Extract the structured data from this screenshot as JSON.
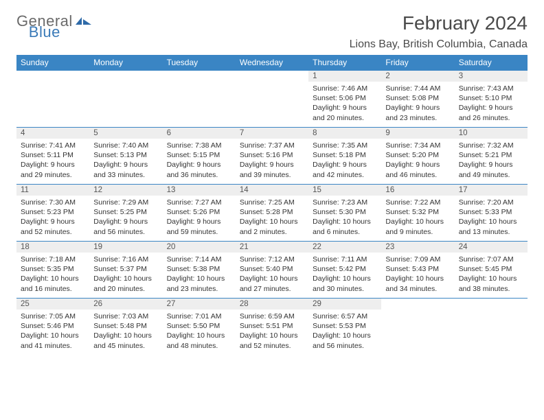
{
  "logo": {
    "part1": "General",
    "part2": "Blue"
  },
  "header": {
    "month_title": "February 2024",
    "location": "Lions Bay, British Columbia, Canada"
  },
  "colors": {
    "header_bg": "#3a85c4",
    "header_text": "#ffffff",
    "daynum_bg": "#eeeeee",
    "row_border": "#3a85c4",
    "logo_gray": "#6a6a6a",
    "logo_blue": "#3a7ab8"
  },
  "weekdays": [
    "Sunday",
    "Monday",
    "Tuesday",
    "Wednesday",
    "Thursday",
    "Friday",
    "Saturday"
  ],
  "weeks": [
    [
      null,
      null,
      null,
      null,
      {
        "n": "1",
        "sunrise": "Sunrise: 7:46 AM",
        "sunset": "Sunset: 5:06 PM",
        "day1": "Daylight: 9 hours",
        "day2": "and 20 minutes."
      },
      {
        "n": "2",
        "sunrise": "Sunrise: 7:44 AM",
        "sunset": "Sunset: 5:08 PM",
        "day1": "Daylight: 9 hours",
        "day2": "and 23 minutes."
      },
      {
        "n": "3",
        "sunrise": "Sunrise: 7:43 AM",
        "sunset": "Sunset: 5:10 PM",
        "day1": "Daylight: 9 hours",
        "day2": "and 26 minutes."
      }
    ],
    [
      {
        "n": "4",
        "sunrise": "Sunrise: 7:41 AM",
        "sunset": "Sunset: 5:11 PM",
        "day1": "Daylight: 9 hours",
        "day2": "and 29 minutes."
      },
      {
        "n": "5",
        "sunrise": "Sunrise: 7:40 AM",
        "sunset": "Sunset: 5:13 PM",
        "day1": "Daylight: 9 hours",
        "day2": "and 33 minutes."
      },
      {
        "n": "6",
        "sunrise": "Sunrise: 7:38 AM",
        "sunset": "Sunset: 5:15 PM",
        "day1": "Daylight: 9 hours",
        "day2": "and 36 minutes."
      },
      {
        "n": "7",
        "sunrise": "Sunrise: 7:37 AM",
        "sunset": "Sunset: 5:16 PM",
        "day1": "Daylight: 9 hours",
        "day2": "and 39 minutes."
      },
      {
        "n": "8",
        "sunrise": "Sunrise: 7:35 AM",
        "sunset": "Sunset: 5:18 PM",
        "day1": "Daylight: 9 hours",
        "day2": "and 42 minutes."
      },
      {
        "n": "9",
        "sunrise": "Sunrise: 7:34 AM",
        "sunset": "Sunset: 5:20 PM",
        "day1": "Daylight: 9 hours",
        "day2": "and 46 minutes."
      },
      {
        "n": "10",
        "sunrise": "Sunrise: 7:32 AM",
        "sunset": "Sunset: 5:21 PM",
        "day1": "Daylight: 9 hours",
        "day2": "and 49 minutes."
      }
    ],
    [
      {
        "n": "11",
        "sunrise": "Sunrise: 7:30 AM",
        "sunset": "Sunset: 5:23 PM",
        "day1": "Daylight: 9 hours",
        "day2": "and 52 minutes."
      },
      {
        "n": "12",
        "sunrise": "Sunrise: 7:29 AM",
        "sunset": "Sunset: 5:25 PM",
        "day1": "Daylight: 9 hours",
        "day2": "and 56 minutes."
      },
      {
        "n": "13",
        "sunrise": "Sunrise: 7:27 AM",
        "sunset": "Sunset: 5:26 PM",
        "day1": "Daylight: 9 hours",
        "day2": "and 59 minutes."
      },
      {
        "n": "14",
        "sunrise": "Sunrise: 7:25 AM",
        "sunset": "Sunset: 5:28 PM",
        "day1": "Daylight: 10 hours",
        "day2": "and 2 minutes."
      },
      {
        "n": "15",
        "sunrise": "Sunrise: 7:23 AM",
        "sunset": "Sunset: 5:30 PM",
        "day1": "Daylight: 10 hours",
        "day2": "and 6 minutes."
      },
      {
        "n": "16",
        "sunrise": "Sunrise: 7:22 AM",
        "sunset": "Sunset: 5:32 PM",
        "day1": "Daylight: 10 hours",
        "day2": "and 9 minutes."
      },
      {
        "n": "17",
        "sunrise": "Sunrise: 7:20 AM",
        "sunset": "Sunset: 5:33 PM",
        "day1": "Daylight: 10 hours",
        "day2": "and 13 minutes."
      }
    ],
    [
      {
        "n": "18",
        "sunrise": "Sunrise: 7:18 AM",
        "sunset": "Sunset: 5:35 PM",
        "day1": "Daylight: 10 hours",
        "day2": "and 16 minutes."
      },
      {
        "n": "19",
        "sunrise": "Sunrise: 7:16 AM",
        "sunset": "Sunset: 5:37 PM",
        "day1": "Daylight: 10 hours",
        "day2": "and 20 minutes."
      },
      {
        "n": "20",
        "sunrise": "Sunrise: 7:14 AM",
        "sunset": "Sunset: 5:38 PM",
        "day1": "Daylight: 10 hours",
        "day2": "and 23 minutes."
      },
      {
        "n": "21",
        "sunrise": "Sunrise: 7:12 AM",
        "sunset": "Sunset: 5:40 PM",
        "day1": "Daylight: 10 hours",
        "day2": "and 27 minutes."
      },
      {
        "n": "22",
        "sunrise": "Sunrise: 7:11 AM",
        "sunset": "Sunset: 5:42 PM",
        "day1": "Daylight: 10 hours",
        "day2": "and 30 minutes."
      },
      {
        "n": "23",
        "sunrise": "Sunrise: 7:09 AM",
        "sunset": "Sunset: 5:43 PM",
        "day1": "Daylight: 10 hours",
        "day2": "and 34 minutes."
      },
      {
        "n": "24",
        "sunrise": "Sunrise: 7:07 AM",
        "sunset": "Sunset: 5:45 PM",
        "day1": "Daylight: 10 hours",
        "day2": "and 38 minutes."
      }
    ],
    [
      {
        "n": "25",
        "sunrise": "Sunrise: 7:05 AM",
        "sunset": "Sunset: 5:46 PM",
        "day1": "Daylight: 10 hours",
        "day2": "and 41 minutes."
      },
      {
        "n": "26",
        "sunrise": "Sunrise: 7:03 AM",
        "sunset": "Sunset: 5:48 PM",
        "day1": "Daylight: 10 hours",
        "day2": "and 45 minutes."
      },
      {
        "n": "27",
        "sunrise": "Sunrise: 7:01 AM",
        "sunset": "Sunset: 5:50 PM",
        "day1": "Daylight: 10 hours",
        "day2": "and 48 minutes."
      },
      {
        "n": "28",
        "sunrise": "Sunrise: 6:59 AM",
        "sunset": "Sunset: 5:51 PM",
        "day1": "Daylight: 10 hours",
        "day2": "and 52 minutes."
      },
      {
        "n": "29",
        "sunrise": "Sunrise: 6:57 AM",
        "sunset": "Sunset: 5:53 PM",
        "day1": "Daylight: 10 hours",
        "day2": "and 56 minutes."
      },
      null,
      null
    ]
  ]
}
